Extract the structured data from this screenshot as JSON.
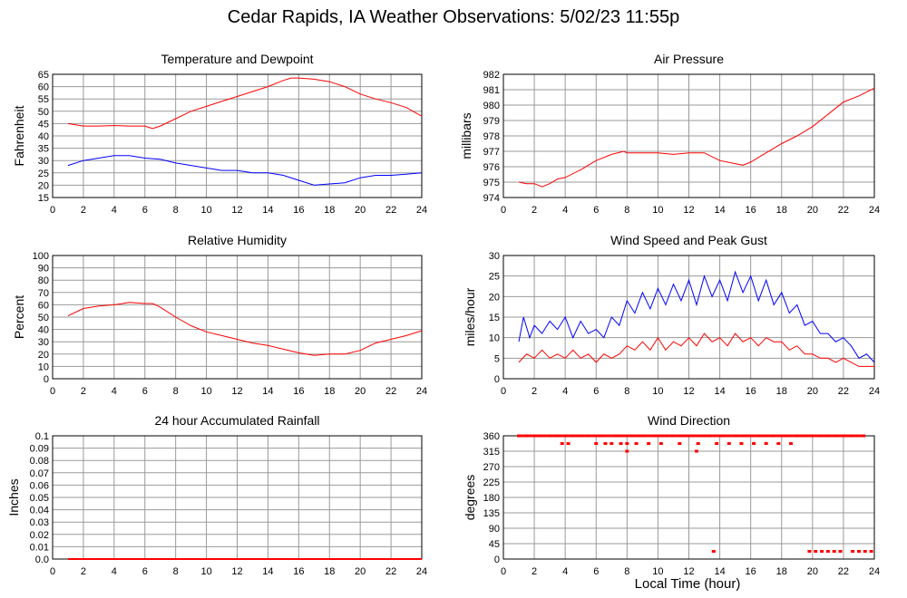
{
  "page": {
    "title": "Cedar Rapids, IA Weather Observations: 5/02/23 11:55p",
    "xlabel": "Local Time (hour)"
  },
  "colors": {
    "red": "#ff0000",
    "blue": "#0000ff",
    "grid": "#9a9a9a",
    "axis": "#000000"
  },
  "chart_data": [
    {
      "id": "temp",
      "type": "line",
      "title": "Temperature and Dewpoint",
      "xlabel": "",
      "ylabel": "Fahrenheit",
      "xlim": [
        0,
        24
      ],
      "ylim": [
        15,
        65
      ],
      "xticks": [
        2,
        4,
        6,
        8,
        10,
        12,
        14,
        16,
        18,
        20,
        22,
        24
      ],
      "yticks": [
        15,
        20,
        25,
        30,
        35,
        40,
        45,
        50,
        55,
        60,
        65
      ],
      "grid": true,
      "series": [
        {
          "color": "#ff0000",
          "x": [
            1,
            2,
            3,
            4,
            5,
            6,
            6.5,
            7,
            8,
            9,
            10,
            11,
            12,
            13,
            14,
            15,
            15.5,
            16,
            17,
            18,
            19,
            20,
            21,
            22,
            23,
            24
          ],
          "y": [
            45,
            44,
            44,
            44.2,
            44,
            44,
            43,
            44,
            47,
            50,
            52,
            54,
            56,
            58,
            60,
            62.5,
            63.5,
            63.5,
            63,
            62,
            60,
            57,
            55,
            53.5,
            51.5,
            48
          ]
        },
        {
          "color": "#0000ff",
          "x": [
            1,
            2,
            3,
            4,
            5,
            6,
            7,
            8,
            9,
            10,
            11,
            12,
            13,
            14,
            15,
            16,
            17,
            18,
            19,
            20,
            21,
            22,
            23,
            24
          ],
          "y": [
            28,
            30,
            31,
            32,
            32,
            31,
            30.5,
            29,
            28,
            27,
            26,
            26,
            25,
            25,
            24,
            22,
            20,
            20.5,
            21,
            23,
            24,
            24,
            24.5,
            25
          ]
        }
      ]
    },
    {
      "id": "pressure",
      "type": "line",
      "title": "Air Pressure",
      "xlabel": "",
      "ylabel": "millibars",
      "xlim": [
        0,
        24
      ],
      "ylim": [
        974,
        982
      ],
      "xticks": [
        2,
        4,
        6,
        8,
        10,
        12,
        14,
        16,
        18,
        20,
        22,
        24
      ],
      "yticks": [
        974,
        975,
        976,
        977,
        978,
        979,
        980,
        981,
        982
      ],
      "grid": true,
      "series": [
        {
          "color": "#ff0000",
          "x": [
            1,
            1.5,
            2,
            2.5,
            3,
            3.5,
            4,
            5,
            6,
            7,
            7.8,
            8,
            9,
            10,
            11,
            12,
            13,
            14,
            15,
            15.5,
            16,
            17,
            18,
            19,
            20,
            21,
            22,
            23,
            24
          ],
          "y": [
            975,
            974.9,
            974.9,
            974.7,
            974.9,
            975.2,
            975.3,
            975.8,
            976.4,
            976.8,
            977,
            976.9,
            976.9,
            976.9,
            976.8,
            976.9,
            976.9,
            976.4,
            976.2,
            976.1,
            976.3,
            976.9,
            977.5,
            978,
            978.6,
            979.4,
            980.2,
            980.6,
            981.1
          ]
        }
      ]
    },
    {
      "id": "humidity",
      "type": "line",
      "title": "Relative Humidity",
      "xlabel": "",
      "ylabel": "Percent",
      "xlim": [
        0,
        24
      ],
      "ylim": [
        0,
        100
      ],
      "xticks": [
        2,
        4,
        6,
        8,
        10,
        12,
        14,
        16,
        18,
        20,
        22,
        24
      ],
      "yticks": [
        0,
        10,
        20,
        30,
        40,
        50,
        60,
        70,
        80,
        90,
        100
      ],
      "grid": true,
      "series": [
        {
          "color": "#ff0000",
          "x": [
            1,
            2,
            3,
            4,
            5,
            6,
            6.5,
            7,
            8,
            9,
            10,
            11,
            12,
            13,
            14,
            15,
            16,
            17,
            18,
            19,
            20,
            21,
            22,
            23,
            24
          ],
          "y": [
            51,
            57,
            59,
            60,
            62,
            61,
            61,
            58,
            50,
            43,
            38,
            35,
            32,
            29,
            27,
            24,
            21,
            19,
            20,
            20,
            23,
            29,
            32,
            35,
            39
          ]
        }
      ]
    },
    {
      "id": "wind",
      "type": "line",
      "title": "Wind Speed and Peak Gust",
      "xlabel": "",
      "ylabel": "miles/hour",
      "xlim": [
        0,
        24
      ],
      "ylim": [
        0,
        30
      ],
      "xticks": [
        2,
        4,
        6,
        8,
        10,
        12,
        14,
        16,
        18,
        20,
        22,
        24
      ],
      "yticks": [
        0,
        5,
        10,
        15,
        20,
        25,
        30
      ],
      "grid": true,
      "series": [
        {
          "color": "#0000ff",
          "x": [
            1,
            1.3,
            1.7,
            2,
            2.5,
            3,
            3.5,
            4,
            4.5,
            5,
            5.5,
            6,
            6.5,
            7,
            7.5,
            8,
            8.5,
            9,
            9.5,
            10,
            10.5,
            11,
            11.5,
            12,
            12.5,
            13,
            13.5,
            14,
            14.5,
            15,
            15.5,
            16,
            16.5,
            17,
            17.5,
            18,
            18.5,
            19,
            19.5,
            20,
            20.5,
            21,
            21.5,
            22,
            22.5,
            23,
            23.5,
            24
          ],
          "y": [
            9,
            15,
            10,
            13,
            11,
            14,
            12,
            15,
            10,
            14,
            11,
            12,
            10,
            15,
            13,
            19,
            16,
            21,
            17,
            22,
            18,
            23,
            19,
            24,
            18,
            25,
            20,
            24,
            19,
            26,
            21,
            25,
            19,
            24,
            18,
            21,
            16,
            18,
            13,
            14,
            11,
            11,
            9,
            10,
            8,
            5,
            6,
            4
          ]
        },
        {
          "color": "#ff0000",
          "x": [
            1,
            1.5,
            2,
            2.5,
            3,
            3.5,
            4,
            4.5,
            5,
            5.5,
            6,
            6.5,
            7,
            7.5,
            8,
            8.5,
            9,
            9.5,
            10,
            10.5,
            11,
            11.5,
            12,
            12.5,
            13,
            13.5,
            14,
            14.5,
            15,
            15.5,
            16,
            16.5,
            17,
            17.5,
            18,
            18.5,
            19,
            19.5,
            20,
            20.5,
            21,
            21.5,
            22,
            22.5,
            23,
            23.5,
            24
          ],
          "y": [
            4,
            6,
            5,
            7,
            5,
            6,
            5,
            7,
            5,
            6,
            4,
            6,
            5,
            6,
            8,
            7,
            9,
            7,
            10,
            7,
            9,
            8,
            10,
            8,
            11,
            9,
            10,
            8,
            11,
            9,
            10,
            8,
            10,
            9,
            9,
            7,
            8,
            6,
            6,
            5,
            5,
            4,
            5,
            4,
            3,
            3,
            3
          ]
        }
      ]
    },
    {
      "id": "rain",
      "type": "line",
      "title": "24 hour Accumulated Rainfall",
      "xlabel": "",
      "ylabel": "Inches",
      "xlim": [
        0,
        24
      ],
      "ylim": [
        0,
        0.1
      ],
      "xticks": [
        2,
        4,
        6,
        8,
        10,
        12,
        14,
        16,
        18,
        20,
        22,
        24
      ],
      "yticks": [
        0.0,
        0.01,
        0.02,
        0.03,
        0.04,
        0.05,
        0.06,
        0.07,
        0.08,
        0.09,
        0.1
      ],
      "ytick_labels": [
        "0.0",
        "0.01",
        "0.02",
        "0.03",
        "0.04",
        "0.05",
        "0.06",
        "0.07",
        "0.08",
        "0.09",
        "0.1"
      ],
      "grid": true,
      "series": [
        {
          "color": "#ff0000",
          "x": [
            1,
            24
          ],
          "y": [
            0,
            0
          ]
        }
      ]
    },
    {
      "id": "direction",
      "type": "scatter",
      "title": "Wind Direction",
      "xlabel": "Local Time (hour)",
      "ylabel": "degrees",
      "xlim": [
        0,
        24
      ],
      "ylim": [
        0,
        360
      ],
      "xticks": [
        2,
        4,
        6,
        8,
        10,
        12,
        14,
        16,
        18,
        20,
        22,
        24
      ],
      "yticks": [
        0,
        45,
        90,
        135,
        180,
        225,
        270,
        315,
        360
      ],
      "grid": true,
      "series": [
        {
          "color": "#ff0000",
          "x": [
            1,
            1.5,
            2,
            2.5,
            3,
            3.5,
            3.8,
            4,
            4.2,
            4.5,
            5,
            5.5,
            6,
            6.3,
            6.6,
            7,
            7.3,
            7.6,
            8,
            8.3,
            8.6,
            9,
            9.4,
            9.8,
            10.2,
            10.6,
            11,
            11.4,
            11.8,
            12.2,
            12.6,
            13,
            13.4,
            13.8,
            14.2,
            14.6,
            15,
            15.4,
            15.8,
            16.2,
            16.6,
            17,
            17.4,
            17.8,
            18.2,
            18.6,
            19,
            19.5,
            20,
            20.5,
            21,
            21.5,
            22,
            22.5,
            23.3,
            8,
            12.5,
            13.6,
            19.8,
            20.2,
            20.6,
            21,
            21.4,
            21.8,
            22.6,
            23,
            23.4,
            23.8
          ],
          "y": [
            360,
            360,
            360,
            360,
            360,
            360,
            337.5,
            360,
            337.5,
            360,
            360,
            360,
            337.5,
            360,
            337.5,
            337.5,
            360,
            337.5,
            337.5,
            360,
            337.5,
            360,
            337.5,
            360,
            337.5,
            360,
            360,
            337.5,
            360,
            360,
            337.5,
            360,
            360,
            337.5,
            360,
            337.5,
            360,
            337.5,
            360,
            337.5,
            360,
            337.5,
            360,
            337.5,
            360,
            337.5,
            360,
            360,
            360,
            360,
            360,
            360,
            360,
            360,
            360,
            315,
            315,
            22.5,
            22.5,
            22.5,
            22.5,
            22.5,
            22.5,
            22.5,
            22.5,
            22.5,
            22.5,
            22.5
          ]
        }
      ]
    }
  ]
}
